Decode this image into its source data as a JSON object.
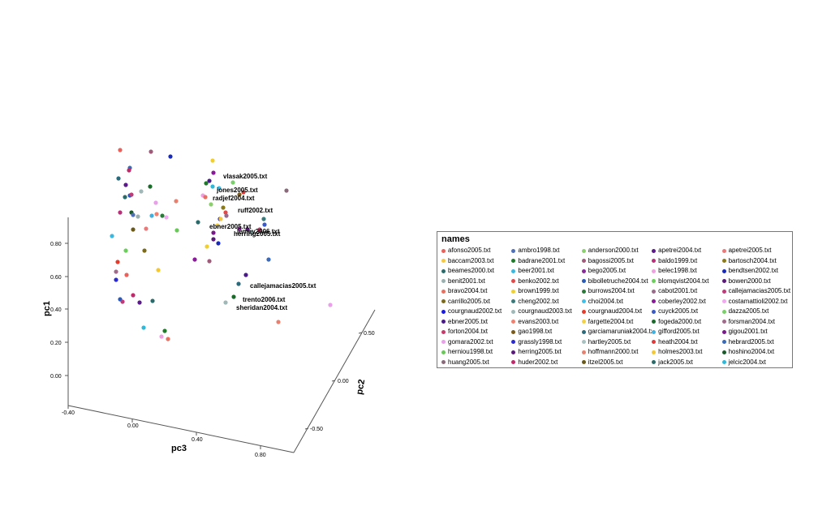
{
  "chart_data": {
    "type": "scatter",
    "projection": "3d",
    "axes": {
      "pc1": {
        "title": "pc1",
        "ticks": [
          "0.00",
          "0.20",
          "0.40",
          "0.60",
          "0.80"
        ]
      },
      "pc2": {
        "title": "pc2",
        "ticks": [
          "-0.50",
          "0.00",
          "0.50"
        ]
      },
      "pc3": {
        "title": "pc3",
        "ticks": [
          "-0.40",
          "0.00",
          "0.40",
          "0.80"
        ]
      }
    },
    "legend": {
      "title": "names",
      "placement": "right",
      "entries": [
        {
          "name": "afonso2005.txt",
          "color": "#e8615a"
        },
        {
          "name": "ambro1998.txt",
          "color": "#4f6fb8"
        },
        {
          "name": "anderson2000.txt",
          "color": "#8ccf6e"
        },
        {
          "name": "apetrei2004.txt",
          "color": "#5a1a8a"
        },
        {
          "name": "apetrei2005.txt",
          "color": "#e87a7a"
        },
        {
          "name": "baccam2003.txt",
          "color": "#f5c842"
        },
        {
          "name": "badrane2001.txt",
          "color": "#1f7a2a"
        },
        {
          "name": "bagossi2005.txt",
          "color": "#a05a7a"
        },
        {
          "name": "baldo1999.txt",
          "color": "#b8307a"
        },
        {
          "name": "bartosch2004.txt",
          "color": "#8a7a1a"
        },
        {
          "name": "beames2000.txt",
          "color": "#2a6a6a"
        },
        {
          "name": "beer2001.txt",
          "color": "#3ab8e0"
        },
        {
          "name": "bego2005.txt",
          "color": "#8a2a9a"
        },
        {
          "name": "belec1998.txt",
          "color": "#f0a0e0"
        },
        {
          "name": "bendtsen2002.txt",
          "color": "#1a2ab8"
        },
        {
          "name": "benit2001.txt",
          "color": "#9ab0b0"
        },
        {
          "name": "benko2002.txt",
          "color": "#e04a4a"
        },
        {
          "name": "bibolletruche2004.txt",
          "color": "#2a5ab8"
        },
        {
          "name": "blomqvist2004.txt",
          "color": "#6acf5a"
        },
        {
          "name": "bowen2000.txt",
          "color": "#5a1a7a"
        },
        {
          "name": "bravo2004.txt",
          "color": "#e87060"
        },
        {
          "name": "brown1999.txt",
          "color": "#f0d030"
        },
        {
          "name": "burrows2004.txt",
          "color": "#2a7a3a"
        },
        {
          "name": "cabot2001.txt",
          "color": "#9a6a8a"
        },
        {
          "name": "callejamacias2005.txt",
          "color": "#c03a7a"
        },
        {
          "name": "carrillo2005.txt",
          "color": "#7a6a1a"
        },
        {
          "name": "cheng2002.txt",
          "color": "#3a7a7a"
        },
        {
          "name": "choi2004.txt",
          "color": "#40c0e8"
        },
        {
          "name": "coberley2002.txt",
          "color": "#8a1a9a"
        },
        {
          "name": "costamattioli2002.txt",
          "color": "#f0a8f0"
        },
        {
          "name": "courgnaud2002.txt",
          "color": "#1a1ae0"
        },
        {
          "name": "courgnaud2003.txt",
          "color": "#a0b8b8"
        },
        {
          "name": "courgnaud2004.txt",
          "color": "#e83a2a"
        },
        {
          "name": "cuyck2005.txt",
          "color": "#3a5ac8"
        },
        {
          "name": "dazza2005.txt",
          "color": "#7acf6a"
        },
        {
          "name": "ebner2005.txt",
          "color": "#4a1a8a"
        },
        {
          "name": "evans2003.txt",
          "color": "#f08070"
        },
        {
          "name": "fargette2004.txt",
          "color": "#f5d040"
        },
        {
          "name": "fogeda2000.txt",
          "color": "#1a6a2a"
        },
        {
          "name": "forsman2004.txt",
          "color": "#a06a8a"
        },
        {
          "name": "forton2004.txt",
          "color": "#c83a6a"
        },
        {
          "name": "gao1998.txt",
          "color": "#7a5a1a"
        },
        {
          "name": "garciamaruniak2004.txt",
          "color": "#2a6a7a"
        },
        {
          "name": "gifford2005.txt",
          "color": "#40b0e0"
        },
        {
          "name": "gigou2001.txt",
          "color": "#7a1a8a"
        },
        {
          "name": "gomara2002.txt",
          "color": "#e8a0e8"
        },
        {
          "name": "grassly1998.txt",
          "color": "#2a2ad0"
        },
        {
          "name": "hartley2005.txt",
          "color": "#a8c0c0"
        },
        {
          "name": "heath2004.txt",
          "color": "#e03a3a"
        },
        {
          "name": "hebrard2005.txt",
          "color": "#3a6ab8"
        },
        {
          "name": "herniou1998.txt",
          "color": "#6ac85a"
        },
        {
          "name": "herring2005.txt",
          "color": "#5a1a7a"
        },
        {
          "name": "hoffmann2000.txt",
          "color": "#e88070"
        },
        {
          "name": "holmes2003.txt",
          "color": "#f5c832"
        },
        {
          "name": "hoshino2004.txt",
          "color": "#1a5a2a"
        },
        {
          "name": "huang2005.txt",
          "color": "#8a6a7a"
        },
        {
          "name": "huder2002.txt",
          "color": "#c02a6a"
        },
        {
          "name": "itzel2005.txt",
          "color": "#6a5a1a"
        },
        {
          "name": "jack2005.txt",
          "color": "#2a6a6a"
        },
        {
          "name": "jelcic2004.txt",
          "color": "#30b8d8"
        }
      ]
    },
    "point_labels": [
      "vlasak2005.txt",
      "jones2005.txt",
      "radjef2004.txt",
      "ruff2002.txt",
      "ebner2005.txt",
      "lemey2006.txt",
      "herring2005.txt",
      "callejamacias2005.txt",
      "trento2006.txt",
      "sheridan2004.txt"
    ],
    "grid": false
  }
}
